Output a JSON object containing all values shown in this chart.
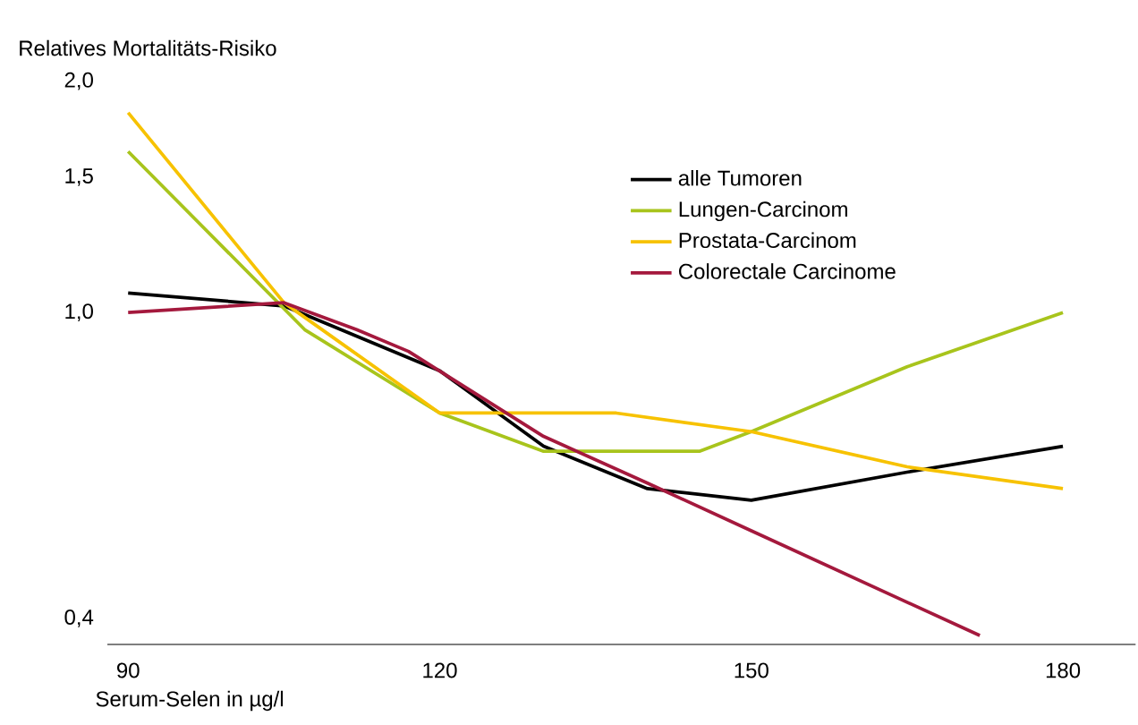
{
  "chart_data": {
    "type": "line",
    "ylabel": "Relatives Mortalitäts-Risiko",
    "xlabel": "Serum-Selen in µg/l",
    "log": "y",
    "xlim": [
      88,
      187
    ],
    "ylim": [
      0.37,
      2.0
    ],
    "xticks": [
      90,
      120,
      150,
      180
    ],
    "yticks": [
      {
        "value": 0.4,
        "label": "0,4"
      },
      {
        "value": 1.0,
        "label": "1,0"
      },
      {
        "value": 1.5,
        "label": "1,5"
      },
      {
        "value": 2.0,
        "label": "2,0"
      }
    ],
    "legend": "top right",
    "grid": false,
    "marker": "none",
    "line_style": "solid",
    "series": [
      {
        "name": "alle Tumoren",
        "color": "#000000",
        "x": [
          90,
          105,
          120,
          130,
          140,
          150,
          165,
          180
        ],
        "values": [
          1.06,
          1.02,
          0.84,
          0.67,
          0.59,
          0.57,
          0.62,
          0.67
        ]
      },
      {
        "name": "Lungen-Carcinom",
        "color": "#a8c41c",
        "x": [
          90,
          107,
          120,
          130,
          145,
          150,
          165,
          180
        ],
        "values": [
          1.62,
          0.95,
          0.74,
          0.66,
          0.66,
          0.7,
          0.85,
          1.0
        ]
      },
      {
        "name": "Prostata-Carcinom",
        "color": "#f7c200",
        "x": [
          90,
          105,
          120,
          137,
          150,
          165,
          180
        ],
        "values": [
          1.82,
          1.03,
          0.74,
          0.74,
          0.7,
          0.63,
          0.59
        ]
      },
      {
        "name": "Colorectale Carcinome",
        "color": "#a4193d",
        "x": [
          90,
          105,
          112,
          117,
          130,
          140,
          150,
          172
        ],
        "values": [
          1.0,
          1.03,
          0.95,
          0.89,
          0.69,
          0.6,
          0.52,
          0.38
        ]
      }
    ]
  }
}
